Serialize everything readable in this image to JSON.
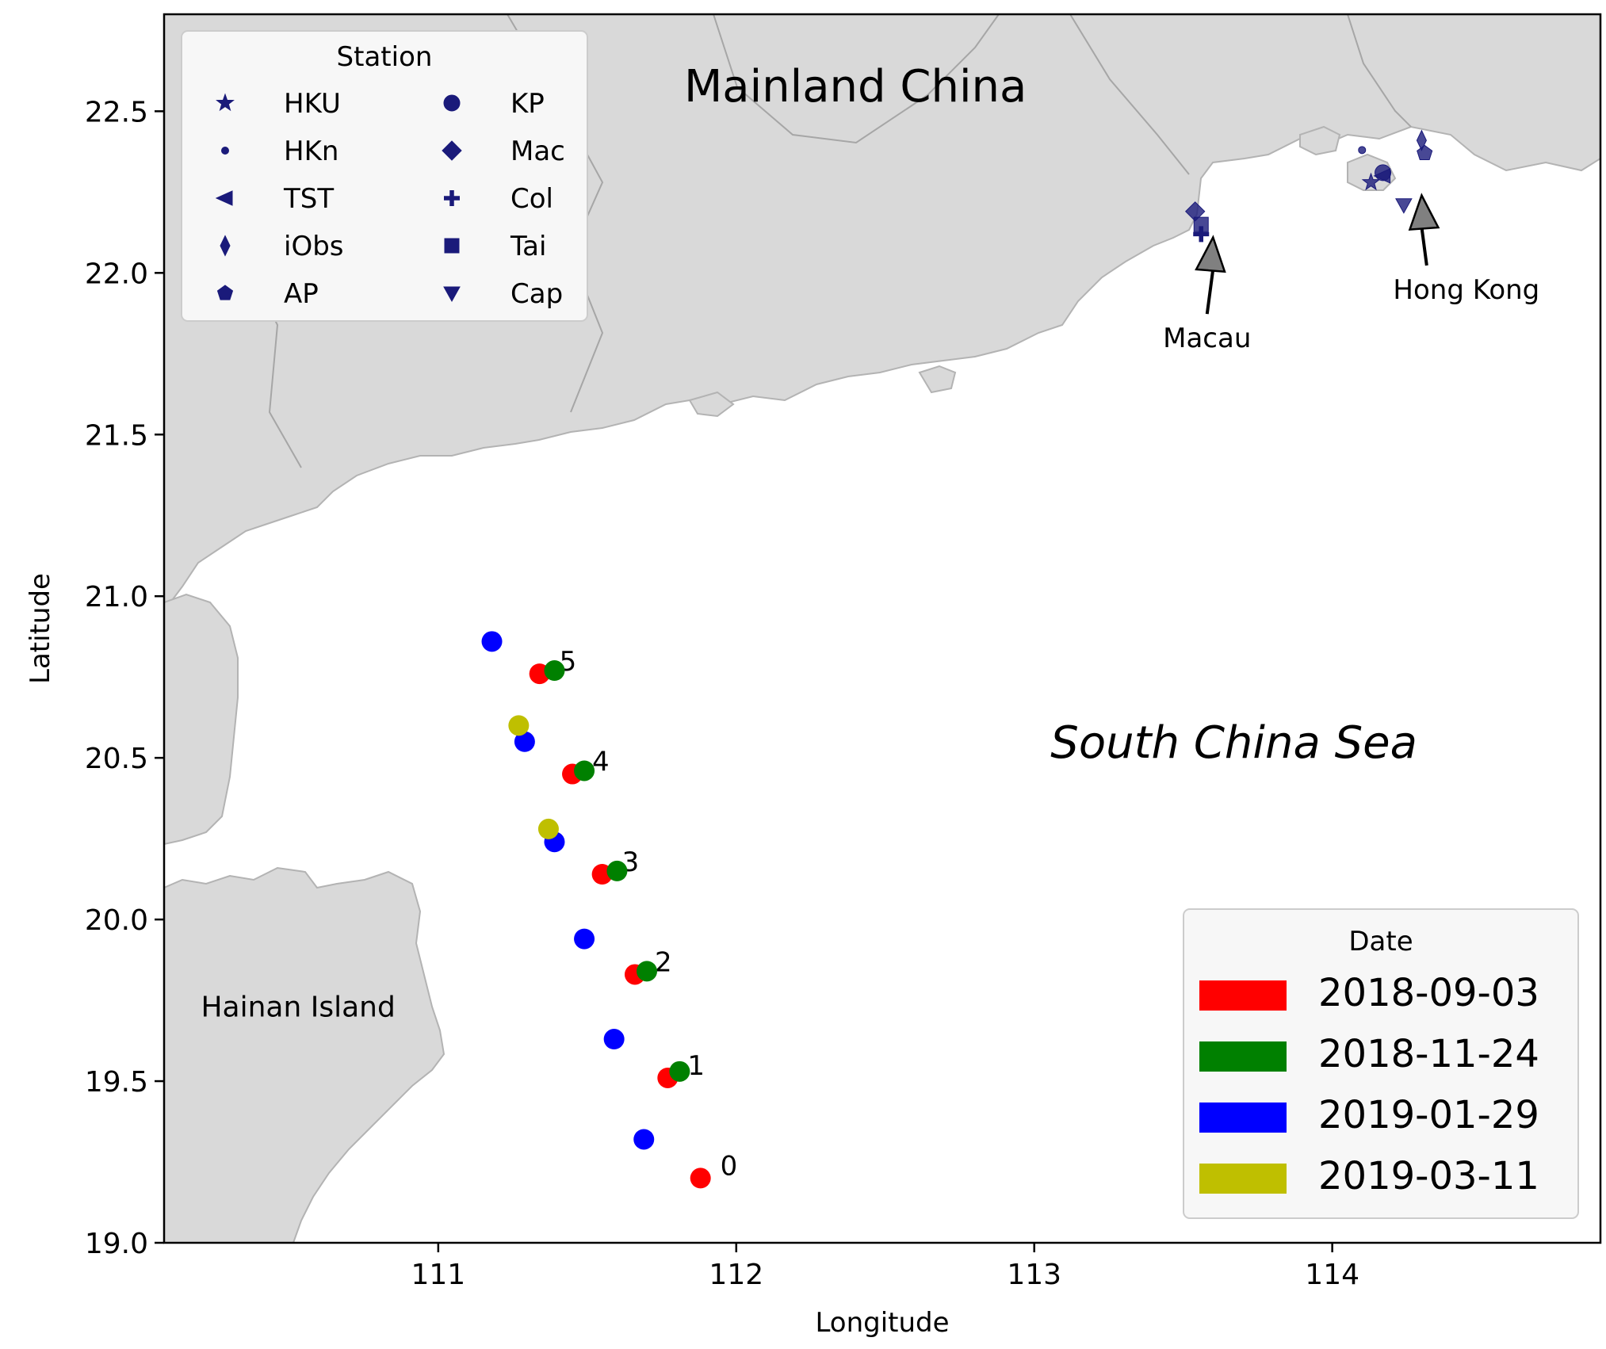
{
  "chart_data": {
    "type": "scatter",
    "xlabel": "Longitude",
    "ylabel": "Latitude",
    "xlim": [
      110.08,
      114.9
    ],
    "ylim": [
      19.0,
      22.8
    ],
    "xticks": [
      111,
      112,
      113,
      114
    ],
    "yticks": [
      19.0,
      19.5,
      20.0,
      20.5,
      21.0,
      21.5,
      22.0,
      22.5
    ],
    "xtick_labels": [
      "111",
      "112",
      "113",
      "114"
    ],
    "ytick_labels": [
      "19.0",
      "19.5",
      "20.0",
      "20.5",
      "21.0",
      "21.5",
      "22.0",
      "22.5"
    ],
    "grid": false,
    "region_labels": [
      {
        "text": "Mainland China",
        "lon": 112.4,
        "lat": 22.53,
        "style": "normal",
        "size": "large"
      },
      {
        "text": "South China Sea",
        "lon": 113.67,
        "lat": 20.5,
        "style": "italic",
        "size": "large"
      },
      {
        "text": "Hainan Island",
        "lon": 110.53,
        "lat": 19.7,
        "style": "normal",
        "size": "medium"
      }
    ],
    "annotations": [
      {
        "text": "Macau",
        "text_lon": 113.58,
        "text_lat": 21.77,
        "arrow_lon": 113.6,
        "arrow_lat": 22.11
      },
      {
        "text": "Hong Kong",
        "text_lon": 114.45,
        "text_lat": 21.92,
        "arrow_lon": 114.3,
        "arrow_lat": 22.24
      }
    ],
    "stations_legend": {
      "title": "Station",
      "color": "#1a1a7a",
      "placement": "upper-left",
      "entries": [
        {
          "label": "HKU",
          "marker": "star"
        },
        {
          "label": "HKn",
          "marker": "small-dot"
        },
        {
          "label": "TST",
          "marker": "triangle-left"
        },
        {
          "label": "iObs",
          "marker": "thin-diamond"
        },
        {
          "label": "AP",
          "marker": "pentagon"
        },
        {
          "label": "KP",
          "marker": "circle"
        },
        {
          "label": "Mac",
          "marker": "diamond"
        },
        {
          "label": "Col",
          "marker": "plus"
        },
        {
          "label": "Tai",
          "marker": "square"
        },
        {
          "label": "Cap",
          "marker": "triangle-down"
        }
      ]
    },
    "stations": [
      {
        "label": "HKU",
        "lon": 114.13,
        "lat": 22.28
      },
      {
        "label": "HKn",
        "lon": 114.1,
        "lat": 22.38
      },
      {
        "label": "TST",
        "lon": 114.17,
        "lat": 22.3
      },
      {
        "label": "iObs",
        "lon": 114.3,
        "lat": 22.41
      },
      {
        "label": "AP",
        "lon": 114.31,
        "lat": 22.37
      },
      {
        "label": "KP",
        "lon": 114.17,
        "lat": 22.31
      },
      {
        "label": "Mac",
        "lon": 113.54,
        "lat": 22.19
      },
      {
        "label": "Col",
        "lon": 113.56,
        "lat": 22.12
      },
      {
        "label": "Tai",
        "lon": 113.56,
        "lat": 22.15
      },
      {
        "label": "Cap",
        "lon": 114.24,
        "lat": 22.21
      }
    ],
    "dates_legend": {
      "title": "Date",
      "placement": "lower-right",
      "entries": [
        {
          "label": "2018-09-03",
          "color": "#ff0000"
        },
        {
          "label": "2018-11-24",
          "color": "#008000"
        },
        {
          "label": "2019-01-29",
          "color": "#0000ff"
        },
        {
          "label": "2019-03-11",
          "color": "#bfbf00"
        }
      ]
    },
    "series": [
      {
        "name": "2018-09-03",
        "color": "#ff0000",
        "points": [
          {
            "lon": 111.88,
            "lat": 19.2,
            "label": "0"
          },
          {
            "lon": 111.77,
            "lat": 19.51,
            "label": "1"
          },
          {
            "lon": 111.66,
            "lat": 19.83,
            "label": "2"
          },
          {
            "lon": 111.55,
            "lat": 20.14,
            "label": "3"
          },
          {
            "lon": 111.45,
            "lat": 20.45,
            "label": "4"
          },
          {
            "lon": 111.34,
            "lat": 20.76,
            "label": "5"
          }
        ]
      },
      {
        "name": "2018-11-24",
        "color": "#008000",
        "points": [
          {
            "lon": 111.81,
            "lat": 19.53
          },
          {
            "lon": 111.7,
            "lat": 19.84
          },
          {
            "lon": 111.6,
            "lat": 20.15
          },
          {
            "lon": 111.49,
            "lat": 20.46
          },
          {
            "lon": 111.39,
            "lat": 20.77
          }
        ]
      },
      {
        "name": "2019-01-29",
        "color": "#0000ff",
        "points": [
          {
            "lon": 111.69,
            "lat": 19.32
          },
          {
            "lon": 111.59,
            "lat": 19.63
          },
          {
            "lon": 111.49,
            "lat": 19.94
          },
          {
            "lon": 111.39,
            "lat": 20.24
          },
          {
            "lon": 111.29,
            "lat": 20.55
          },
          {
            "lon": 111.18,
            "lat": 20.86
          }
        ]
      },
      {
        "name": "2019-03-11",
        "color": "#bfbf00",
        "points": [
          {
            "lon": 111.37,
            "lat": 20.28
          },
          {
            "lon": 111.27,
            "lat": 20.6
          }
        ]
      }
    ]
  }
}
